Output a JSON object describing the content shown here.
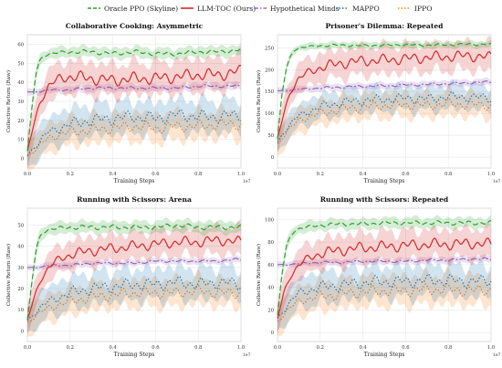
{
  "legend": [
    {
      "name": "Oracle PPO (Skyline)",
      "color": "#2ca02c",
      "dash": "6,3"
    },
    {
      "name": "LLM-TOC (Ours)",
      "color": "#d62728",
      "dash": ""
    },
    {
      "name": "Hypothetical Minds",
      "color": "#9467bd",
      "dash": "7,2,2,2"
    },
    {
      "name": "MAPPO",
      "color": "#1f77b4",
      "dash": "1.5,2"
    },
    {
      "name": "IPPO",
      "color": "#ff7f0e",
      "dash": "1.5,2"
    }
  ],
  "chart_data": [
    {
      "type": "line",
      "title": "Collaborative Cooking: Asymmetric",
      "xlabel": "Training Steps",
      "ylabel": "Collective Return (Raw)",
      "x_exponent": "1e7",
      "xlim": [
        0,
        1.0
      ],
      "ylim": [
        -5,
        65
      ],
      "xticks": [
        "0.0",
        "0.2",
        "0.4",
        "0.6",
        "0.8",
        "1.0"
      ],
      "yticks": [
        0,
        10,
        20,
        30,
        40,
        50,
        60
      ],
      "grid": true,
      "series": [
        {
          "name": "Oracle PPO (Skyline)",
          "x": [
            0,
            0.02,
            0.04,
            0.06,
            0.08,
            0.1,
            0.2,
            0.3,
            0.4,
            0.5,
            0.6,
            0.7,
            0.8,
            0.9,
            1.0
          ],
          "y": [
            4,
            25,
            45,
            52,
            54,
            55,
            56,
            56,
            55,
            56,
            55,
            55,
            56,
            56,
            57
          ],
          "band": 3
        },
        {
          "name": "LLM-TOC (Ours)",
          "x": [
            0,
            0.03,
            0.06,
            0.1,
            0.15,
            0.2,
            0.3,
            0.4,
            0.5,
            0.6,
            0.7,
            0.8,
            0.9,
            1.0
          ],
          "y": [
            3,
            18,
            30,
            38,
            42,
            43,
            42,
            41,
            42,
            42,
            43,
            44,
            44,
            46
          ],
          "band": 9
        },
        {
          "name": "Hypothetical Minds",
          "x": [
            0,
            0.05,
            0.1,
            0.2,
            0.3,
            0.4,
            0.5,
            0.6,
            0.7,
            0.8,
            0.9,
            1.0
          ],
          "y": [
            35,
            35,
            36,
            36,
            37,
            37,
            37,
            37,
            37,
            38,
            38,
            38
          ],
          "band": 2
        },
        {
          "name": "MAPPO",
          "x": [
            0,
            0.05,
            0.1,
            0.2,
            0.3,
            0.4,
            0.5,
            0.6,
            0.7,
            0.8,
            0.9,
            1.0
          ],
          "y": [
            2,
            8,
            14,
            18,
            20,
            21,
            22,
            21,
            23,
            22,
            22,
            23
          ],
          "band": 9
        },
        {
          "name": "IPPO",
          "x": [
            0,
            0.05,
            0.1,
            0.2,
            0.3,
            0.4,
            0.5,
            0.6,
            0.7,
            0.8,
            0.9,
            1.0
          ],
          "y": [
            1,
            6,
            11,
            14,
            15,
            16,
            17,
            16,
            17,
            17,
            18,
            18
          ],
          "band": 8
        }
      ]
    },
    {
      "type": "line",
      "title": "Prisoner's Dilemma: Repeated",
      "xlabel": "Training Steps",
      "ylabel": "Collective Return (Raw)",
      "x_exponent": "1e7",
      "xlim": [
        0,
        1.0
      ],
      "ylim": [
        -25,
        280
      ],
      "xticks": [
        "0.0",
        "0.2",
        "0.4",
        "0.6",
        "0.8",
        "1.0"
      ],
      "yticks": [
        0,
        50,
        100,
        150,
        200,
        250
      ],
      "grid": true,
      "series": [
        {
          "name": "Oracle PPO (Skyline)",
          "x": [
            0,
            0.02,
            0.04,
            0.06,
            0.08,
            0.1,
            0.2,
            0.3,
            0.4,
            0.5,
            0.6,
            0.7,
            0.8,
            0.9,
            1.0
          ],
          "y": [
            40,
            140,
            200,
            230,
            245,
            250,
            255,
            256,
            255,
            256,
            257,
            256,
            257,
            258,
            258
          ],
          "band": 8
        },
        {
          "name": "LLM-TOC (Ours)",
          "x": [
            0,
            0.03,
            0.06,
            0.1,
            0.15,
            0.2,
            0.3,
            0.4,
            0.5,
            0.6,
            0.7,
            0.8,
            0.9,
            1.0
          ],
          "y": [
            40,
            100,
            150,
            180,
            195,
            205,
            215,
            220,
            222,
            225,
            228,
            230,
            232,
            228
          ],
          "band": 35
        },
        {
          "name": "Hypothetical Minds",
          "x": [
            0,
            0.05,
            0.1,
            0.2,
            0.3,
            0.4,
            0.5,
            0.6,
            0.7,
            0.8,
            0.9,
            1.0
          ],
          "y": [
            152,
            153,
            155,
            158,
            160,
            162,
            163,
            165,
            166,
            168,
            170,
            172
          ],
          "band": 8
        },
        {
          "name": "MAPPO",
          "x": [
            0,
            0.05,
            0.1,
            0.2,
            0.3,
            0.4,
            0.5,
            0.6,
            0.7,
            0.8,
            0.9,
            1.0
          ],
          "y": [
            35,
            70,
            95,
            115,
            125,
            130,
            132,
            135,
            133,
            138,
            137,
            135
          ],
          "band": 30
        },
        {
          "name": "IPPO",
          "x": [
            0,
            0.05,
            0.1,
            0.2,
            0.3,
            0.4,
            0.5,
            0.6,
            0.7,
            0.8,
            0.9,
            1.0
          ],
          "y": [
            30,
            60,
            85,
            100,
            110,
            115,
            118,
            120,
            118,
            122,
            120,
            118
          ],
          "band": 30
        }
      ]
    },
    {
      "type": "line",
      "title": "Running with Scissors: Arena",
      "xlabel": "Training Steps",
      "ylabel": "Collective Return (Raw)",
      "x_exponent": "1e7",
      "xlim": [
        0,
        1.0
      ],
      "ylim": [
        -5,
        58
      ],
      "xticks": [
        "0.0",
        "0.2",
        "0.4",
        "0.6",
        "0.8",
        "1.0"
      ],
      "yticks": [
        0,
        10,
        20,
        30,
        40,
        50
      ],
      "grid": true,
      "series": [
        {
          "name": "Oracle PPO (Skyline)",
          "x": [
            0,
            0.02,
            0.04,
            0.06,
            0.08,
            0.1,
            0.2,
            0.3,
            0.4,
            0.5,
            0.6,
            0.7,
            0.8,
            0.9,
            1.0
          ],
          "y": [
            5,
            22,
            38,
            45,
            47,
            48,
            49,
            49,
            49,
            49,
            49,
            50,
            49,
            49,
            49
          ],
          "band": 3
        },
        {
          "name": "LLM-TOC (Ours)",
          "x": [
            0,
            0.03,
            0.06,
            0.1,
            0.15,
            0.2,
            0.3,
            0.4,
            0.5,
            0.6,
            0.7,
            0.8,
            0.9,
            1.0
          ],
          "y": [
            5,
            15,
            24,
            30,
            34,
            36,
            38,
            39,
            40,
            41,
            42,
            42,
            43,
            42
          ],
          "band": 7
        },
        {
          "name": "Hypothetical Minds",
          "x": [
            0,
            0.05,
            0.1,
            0.2,
            0.3,
            0.4,
            0.5,
            0.6,
            0.7,
            0.8,
            0.9,
            1.0
          ],
          "y": [
            30,
            30,
            31,
            31,
            32,
            32,
            32,
            33,
            33,
            33,
            33,
            34
          ],
          "band": 1.5
        },
        {
          "name": "MAPPO",
          "x": [
            0,
            0.05,
            0.1,
            0.2,
            0.3,
            0.4,
            0.5,
            0.6,
            0.7,
            0.8,
            0.9,
            1.0
          ],
          "y": [
            5,
            10,
            14,
            18,
            20,
            21,
            22,
            22,
            23,
            22,
            23,
            22
          ],
          "band": 8
        },
        {
          "name": "IPPO",
          "x": [
            0,
            0.05,
            0.1,
            0.2,
            0.3,
            0.4,
            0.5,
            0.6,
            0.7,
            0.8,
            0.9,
            1.0
          ],
          "y": [
            4,
            8,
            11,
            14,
            16,
            17,
            18,
            18,
            18,
            19,
            18,
            18
          ],
          "band": 7
        }
      ]
    },
    {
      "type": "line",
      "title": "Running with Scissors: Repeated",
      "xlabel": "Training Steps",
      "ylabel": "Collective Return (Raw)",
      "x_exponent": "1e7",
      "xlim": [
        0,
        1.0
      ],
      "ylim": [
        -8,
        110
      ],
      "xticks": [
        "0.0",
        "0.2",
        "0.4",
        "0.6",
        "0.8",
        "1.0"
      ],
      "yticks": [
        0,
        20,
        40,
        60,
        80,
        100
      ],
      "grid": true,
      "series": [
        {
          "name": "Oracle PPO (Skyline)",
          "x": [
            0,
            0.02,
            0.04,
            0.06,
            0.08,
            0.1,
            0.2,
            0.3,
            0.4,
            0.5,
            0.6,
            0.7,
            0.8,
            0.9,
            1.0
          ],
          "y": [
            15,
            50,
            75,
            85,
            90,
            92,
            95,
            96,
            96,
            97,
            97,
            97,
            97,
            97,
            97
          ],
          "band": 5
        },
        {
          "name": "LLM-TOC (Ours)",
          "x": [
            0,
            0.03,
            0.06,
            0.1,
            0.15,
            0.2,
            0.3,
            0.4,
            0.5,
            0.6,
            0.7,
            0.8,
            0.9,
            1.0
          ],
          "y": [
            12,
            35,
            50,
            60,
            66,
            70,
            73,
            75,
            76,
            77,
            78,
            78,
            79,
            78
          ],
          "band": 14
        },
        {
          "name": "Hypothetical Minds",
          "x": [
            0,
            0.05,
            0.1,
            0.2,
            0.3,
            0.4,
            0.5,
            0.6,
            0.7,
            0.8,
            0.9,
            1.0
          ],
          "y": [
            60,
            60,
            61,
            62,
            62,
            63,
            63,
            63,
            64,
            64,
            65,
            65
          ],
          "band": 3
        },
        {
          "name": "MAPPO",
          "x": [
            0,
            0.05,
            0.1,
            0.2,
            0.3,
            0.4,
            0.5,
            0.6,
            0.7,
            0.8,
            0.9,
            1.0
          ],
          "y": [
            12,
            25,
            35,
            40,
            42,
            44,
            45,
            45,
            46,
            46,
            45,
            46
          ],
          "band": 15
        },
        {
          "name": "IPPO",
          "x": [
            0,
            0.05,
            0.1,
            0.2,
            0.3,
            0.4,
            0.5,
            0.6,
            0.7,
            0.8,
            0.9,
            1.0
          ],
          "y": [
            10,
            20,
            28,
            32,
            34,
            36,
            37,
            37,
            38,
            38,
            37,
            38
          ],
          "band": 14
        }
      ]
    }
  ]
}
